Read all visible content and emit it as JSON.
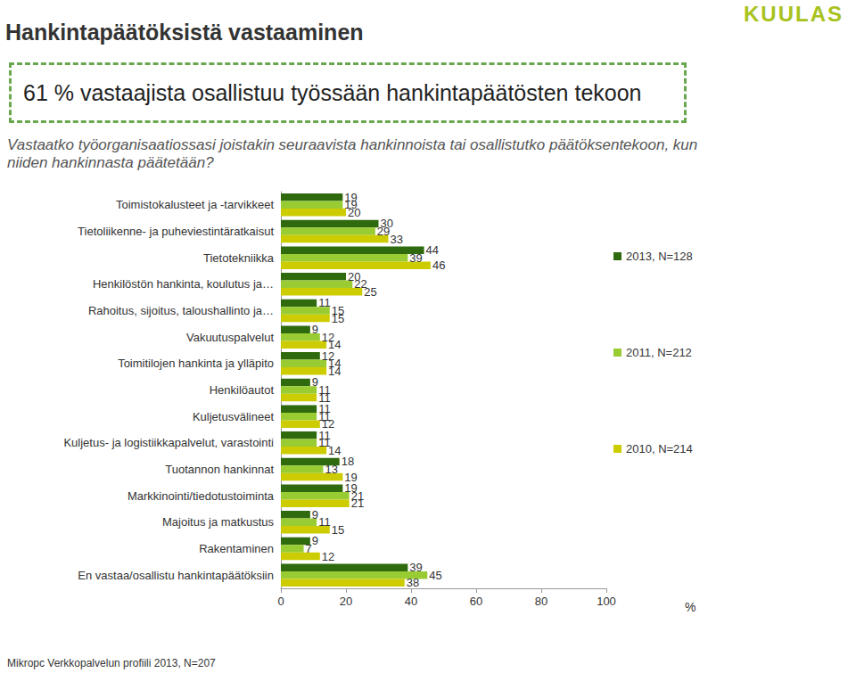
{
  "header": {
    "title": "Hankintapäätöksistä vastaaminen",
    "highlight": "61 % vastaajista osallistuu työssään hankintapäätösten tekoon",
    "question": "Vastaatko työorganisaatiossasi joistakin seuraavista hankinnoista tai osallistutko päätöksentekoon, kun niiden hankinnasta päätetään?",
    "source": "Mikropc Verkkopalvelun profiili 2013, N=207",
    "logo": "KUULAS"
  },
  "chart_data": {
    "type": "bar",
    "orientation": "horizontal",
    "categories": [
      "Toimistokalusteet ja -tarvikkeet",
      "Tietoliikenne- ja puheviestintäratkaisut",
      "Tietotekniikka",
      "Henkilöstön hankinta, koulutus ja…",
      "Rahoitus, sijoitus, taloushallinto ja…",
      "Vakuutuspalvelut",
      "Toimitilojen hankinta ja ylläpito",
      "Henkilöautot",
      "Kuljetusvälineet",
      "Kuljetus- ja logistiikkapalvelut, varastointi",
      "Tuotannon hankinnat",
      "Markkinointi/tiedotustoiminta",
      "Majoitus ja matkustus",
      "Rakentaminen",
      "En vastaa/osallistu hankintapäätöksiin"
    ],
    "series": [
      {
        "name": "2013, N=128",
        "color": "#2f6b0e",
        "values": [
          19,
          30,
          44,
          20,
          11,
          9,
          12,
          9,
          11,
          11,
          18,
          19,
          9,
          9,
          39
        ]
      },
      {
        "name": "2011, N=212",
        "color": "#99cc33",
        "values": [
          19,
          29,
          39,
          22,
          15,
          12,
          14,
          11,
          11,
          11,
          13,
          21,
          11,
          7,
          45
        ]
      },
      {
        "name": "2010, N=214",
        "color": "#cccc00",
        "values": [
          20,
          33,
          46,
          25,
          15,
          14,
          14,
          11,
          12,
          14,
          19,
          21,
          15,
          12,
          38
        ]
      }
    ],
    "xlabel": "%",
    "xlim": [
      0,
      100
    ],
    "xticks": [
      0,
      20,
      40,
      60,
      80,
      100
    ],
    "data_labels": true,
    "legend": "right",
    "grid": false
  }
}
